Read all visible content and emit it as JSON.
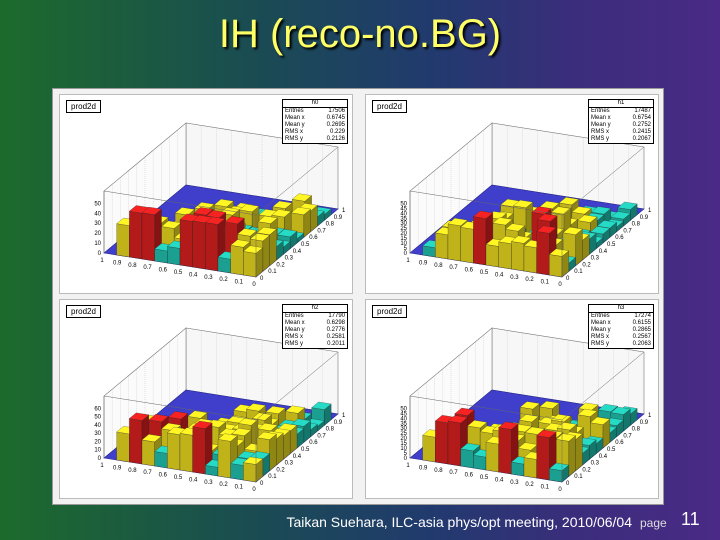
{
  "slide": {
    "title": "IH (reco-no.BG)",
    "footer": "Taikan Suehara, ILC-asia phys/opt meeting, 2010/06/04",
    "page_label": "page",
    "page_number": "11"
  },
  "colors": {
    "title": "#ffff66",
    "surface_low": "#3f3fcc",
    "surface_mid": "#22c7b4",
    "surface_high": "#f0e020",
    "surface_peak": "#e02020"
  },
  "chart_data": [
    {
      "type": "lego3d",
      "tag": "prod2d",
      "hist_name": "h0",
      "stats": [
        {
          "label": "Entries",
          "value": "17506"
        },
        {
          "label": "Mean x",
          "value": "0.6745"
        },
        {
          "label": "Mean y",
          "value": "0.2695"
        },
        {
          "label": "RMS x",
          "value": "0.229"
        },
        {
          "label": "RMS y",
          "value": "0.2126"
        }
      ],
      "z_ticks": [
        "50",
        "40",
        "30",
        "20",
        "10",
        "0"
      ],
      "x_ticks": [
        "1",
        "0.9",
        "0.8",
        "0.7",
        "0.6",
        "0.5",
        "0.4",
        "0.3",
        "0.2",
        "0.1",
        "0"
      ],
      "y_ticks": [
        "1",
        "0.9",
        "0.8",
        "0.7",
        "0.6",
        "0.5",
        "0.4",
        "0.3",
        "0.2",
        "0.1",
        "0"
      ],
      "zmax": 50,
      "seed": 3
    },
    {
      "type": "lego3d",
      "tag": "prod2d",
      "hist_name": "h1",
      "stats": [
        {
          "label": "Entries",
          "value": "17487"
        },
        {
          "label": "Mean x",
          "value": "0.6754"
        },
        {
          "label": "Mean y",
          "value": "0.2752"
        },
        {
          "label": "RMS x",
          "value": "0.2415"
        },
        {
          "label": "RMS y",
          "value": "0.2067"
        }
      ],
      "z_ticks": [
        "50",
        "45",
        "40",
        "35",
        "30",
        "25",
        "20",
        "15",
        "10",
        "5",
        "0"
      ],
      "x_ticks": [
        "1",
        "0.9",
        "0.8",
        "0.7",
        "0.6",
        "0.5",
        "0.4",
        "0.3",
        "0.2",
        "0.1",
        "0"
      ],
      "y_ticks": [
        "1",
        "0.9",
        "0.8",
        "0.7",
        "0.6",
        "0.5",
        "0.4",
        "0.3",
        "0.2",
        "0.1",
        "0"
      ],
      "zmax": 50,
      "seed": 7
    },
    {
      "type": "lego3d",
      "tag": "prod2d",
      "hist_name": "h2",
      "stats": [
        {
          "label": "Entries",
          "value": "17790"
        },
        {
          "label": "Mean x",
          "value": "0.6298"
        },
        {
          "label": "Mean y",
          "value": "0.2776"
        },
        {
          "label": "RMS x",
          "value": "0.2581"
        },
        {
          "label": "RMS y",
          "value": "0.2011"
        }
      ],
      "z_ticks": [
        "60",
        "50",
        "40",
        "30",
        "20",
        "10",
        "0"
      ],
      "x_ticks": [
        "1",
        "0.9",
        "0.8",
        "0.7",
        "0.6",
        "0.5",
        "0.4",
        "0.3",
        "0.2",
        "0.1",
        "0"
      ],
      "y_ticks": [
        "1",
        "0.9",
        "0.8",
        "0.7",
        "0.6",
        "0.5",
        "0.4",
        "0.3",
        "0.2",
        "0.1",
        "0"
      ],
      "zmax": 60,
      "seed": 11
    },
    {
      "type": "lego3d",
      "tag": "prod2d",
      "hist_name": "h3",
      "stats": [
        {
          "label": "Entries",
          "value": "17274"
        },
        {
          "label": "Mean x",
          "value": "0.6155"
        },
        {
          "label": "Mean y",
          "value": "0.2865"
        },
        {
          "label": "RMS x",
          "value": "0.2567"
        },
        {
          "label": "RMS y",
          "value": "0.2063"
        }
      ],
      "z_ticks": [
        "50",
        "45",
        "40",
        "35",
        "30",
        "25",
        "20",
        "15",
        "10",
        "5",
        "0"
      ],
      "x_ticks": [
        "1",
        "0.9",
        "0.8",
        "0.7",
        "0.6",
        "0.5",
        "0.4",
        "0.3",
        "0.2",
        "0.1",
        "0"
      ],
      "y_ticks": [
        "1",
        "0.9",
        "0.8",
        "0.7",
        "0.6",
        "0.5",
        "0.4",
        "0.3",
        "0.2",
        "0.1",
        "0"
      ],
      "zmax": 50,
      "seed": 19
    }
  ]
}
